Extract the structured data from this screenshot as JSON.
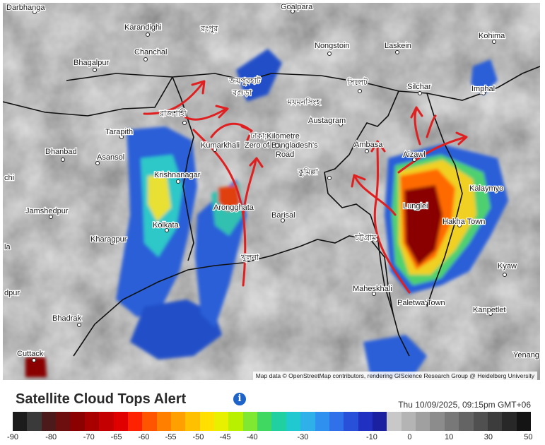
{
  "title": "Satellite Cloud Tops Alert",
  "timestamp": "Thu 10/09/2025, 09:15pm GMT+06",
  "attribution": "Map data © OpenStreetMap contributors, rendering GIScience Research Group @ Heidelberg University",
  "legend_ticks": [
    "-90",
    "-80",
    "-70",
    "-65",
    "-60",
    "-55",
    "-50",
    "-45",
    "-40",
    "-30",
    "-10",
    "0",
    "10",
    "30",
    "50"
  ],
  "colors": {
    "scale": [
      "#1c1c1c",
      "#3a3a3a",
      "#4b1a1a",
      "#6e0f0f",
      "#8b0000",
      "#a80000",
      "#c40000",
      "#e00000",
      "#ff2200",
      "#ff5500",
      "#ff8000",
      "#ffa000",
      "#ffc000",
      "#ffe000",
      "#e8f000",
      "#b8f000",
      "#80e830",
      "#40d860",
      "#20d0a0",
      "#20c8d0",
      "#30b0e8",
      "#3090f0",
      "#3070e8",
      "#2850d8",
      "#2030c0",
      "#1a20a0",
      "#c8c8c8",
      "#b4b4b4",
      "#a0a0a0",
      "#8c8c8c",
      "#787878",
      "#646464",
      "#505050",
      "#3c3c3c",
      "#282828",
      "#141414"
    ],
    "arrows": "#e02020",
    "border": "#111111"
  },
  "icons": {
    "info": "info-icon"
  },
  "info_glyph": "i",
  "places": [
    {
      "name": "Darbhanga"
    },
    {
      "name": "Goalpara"
    },
    {
      "name": "Karandighi"
    },
    {
      "name": "রংপুর"
    },
    {
      "name": "Kohima"
    },
    {
      "name": "Nongstoin"
    },
    {
      "name": "Laskein"
    },
    {
      "name": "Chanchal"
    },
    {
      "name": "Bhagalpur"
    },
    {
      "name": "জয়পুরহাট"
    },
    {
      "name": "বগুড়া"
    },
    {
      "name": "সিলেট"
    },
    {
      "name": "Silchar"
    },
    {
      "name": "Imphal"
    },
    {
      "name": "রাজশাহী"
    },
    {
      "name": "ময়মনসিংহ"
    },
    {
      "name": "Austagram"
    },
    {
      "name": "Tarapith"
    },
    {
      "name": "Kumarkhali"
    },
    {
      "name": "ঢাকা;Kilometre"
    },
    {
      "name": "Zero of Bangladesh's"
    },
    {
      "name": "Road"
    },
    {
      "name": "Ambasa"
    },
    {
      "name": "Aizawl"
    },
    {
      "name": "Dhanbad"
    },
    {
      "name": "Asansol"
    },
    {
      "name": "Krishnanagar"
    },
    {
      "name": "কুমিল্লা"
    },
    {
      "name": "Kalaymyo"
    },
    {
      "name": "Lunglei"
    },
    {
      "name": "chi"
    },
    {
      "name": "Jamshedpur"
    },
    {
      "name": "Arongghata"
    },
    {
      "name": "Barisal"
    },
    {
      "name": "Hakha Town"
    },
    {
      "name": "Kolkata"
    },
    {
      "name": "Kharagpur"
    },
    {
      "name": "চট্টগ্রাম"
    },
    {
      "name": "খুলনা"
    },
    {
      "name": "Kyaw"
    },
    {
      "name": "dpur"
    },
    {
      "name": "Maheskhali"
    },
    {
      "name": "Paletwa Town"
    },
    {
      "name": "Kanpetlet"
    },
    {
      "name": "Bhadrak"
    },
    {
      "name": "Cuttack"
    },
    {
      "name": "Yenang"
    },
    {
      "name": "la"
    }
  ]
}
